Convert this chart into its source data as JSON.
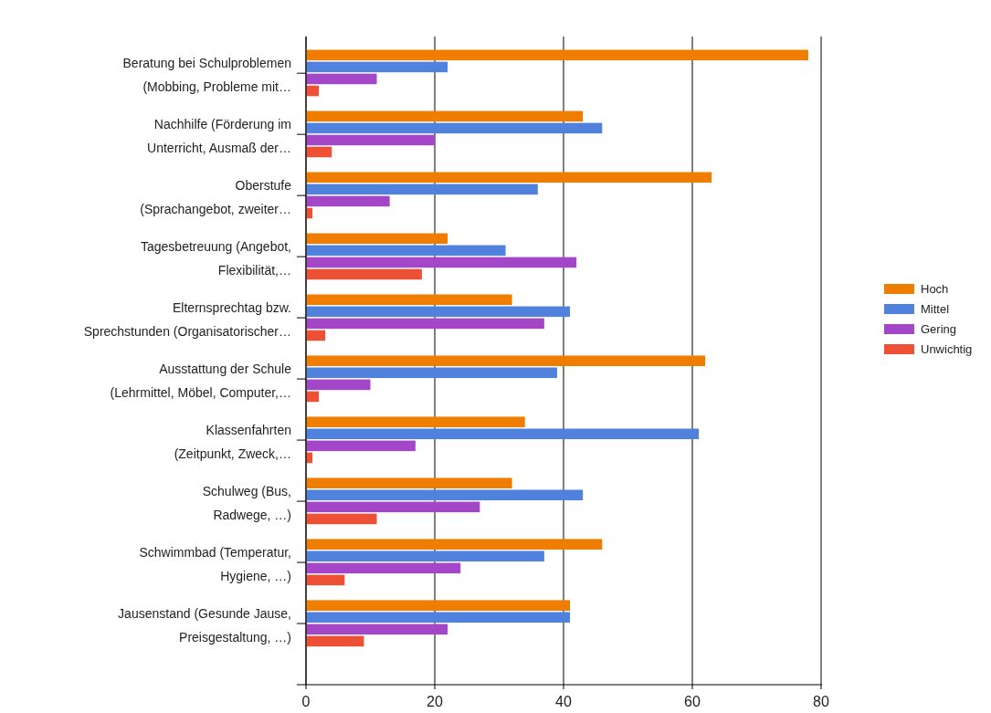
{
  "chart_data": {
    "type": "bar",
    "orientation": "horizontal",
    "categories": [
      "Beratung bei Schulproblemen\n(Mobbing, Probleme mit…",
      "Nachhilfe (Förderung im\nUnterricht, Ausmaß der…",
      "Oberstufe\n(Sprachangebot, zweiter…",
      "Tagesbetreuung (Angebot,\nFlexibilität,…",
      "Elternsprechtag bzw.\nSprechstunden (Organisatorischer…",
      "Ausstattung der Schule\n(Lehrmittel, Möbel, Computer,…",
      "Klassenfahrten\n(Zeitpunkt, Zweck,…",
      "Schulweg (Bus,\nRadwege, …)",
      "Schwimmbad (Temperatur,\nHygiene, …)",
      "Jausenstand (Gesunde Jause,\nPreisgestaltung, …)"
    ],
    "series": [
      {
        "name": "Hoch",
        "color": "#ef7d00",
        "values": [
          78,
          43,
          63,
          22,
          32,
          62,
          34,
          32,
          46,
          41
        ]
      },
      {
        "name": "Mittel",
        "color": "#5081dd",
        "values": [
          22,
          46,
          36,
          31,
          41,
          39,
          61,
          43,
          37,
          41
        ]
      },
      {
        "name": "Gering",
        "color": "#a347c8",
        "values": [
          11,
          20,
          13,
          42,
          37,
          10,
          17,
          27,
          24,
          22
        ]
      },
      {
        "name": "Unwichtig",
        "color": "#ee5035",
        "values": [
          2,
          4,
          1,
          18,
          3,
          2,
          1,
          11,
          6,
          9
        ]
      }
    ],
    "xlim": [
      0,
      80
    ],
    "xticks": [
      0,
      20,
      40,
      60,
      80
    ],
    "grid": "x",
    "legend": "right"
  }
}
